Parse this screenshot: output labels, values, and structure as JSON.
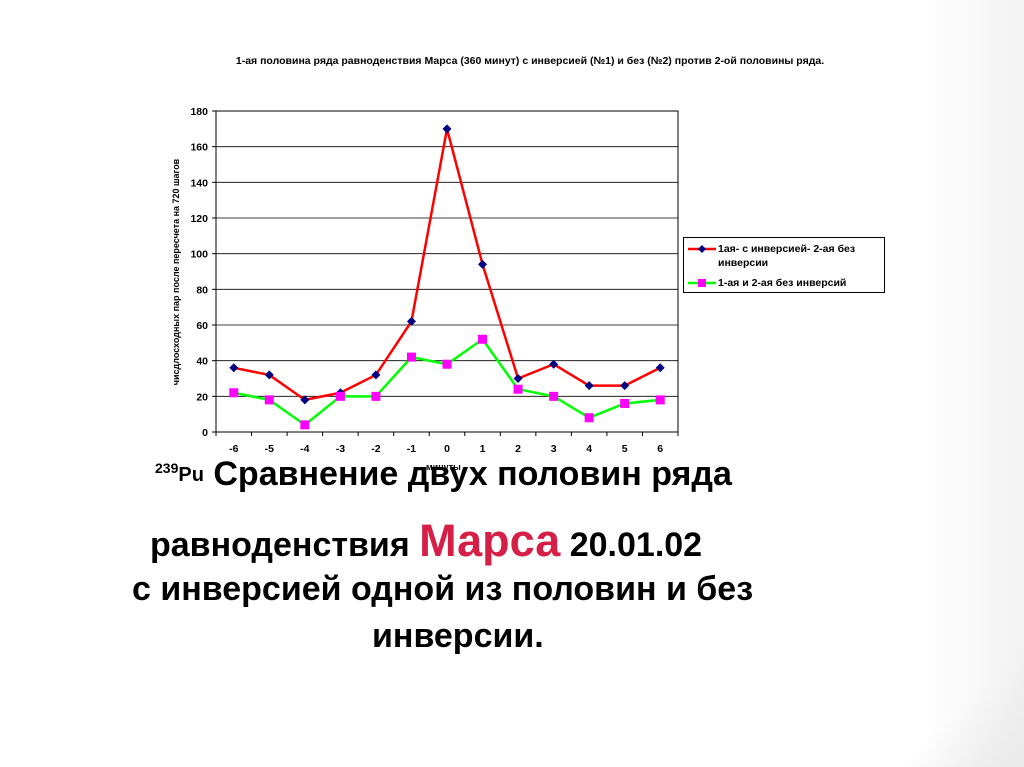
{
  "chart_data": {
    "type": "line",
    "title": "1-ая половина ряда равноденствия Марса (360 минут) с инверсией (№1) и без (№2) против 2-ой половины ряда.",
    "xlabel": "минуты",
    "ylabel": "чисдлосходных пар после пересчета на 720 шагов",
    "ylim": [
      0,
      180
    ],
    "yticks": [
      0,
      20,
      40,
      60,
      80,
      100,
      120,
      140,
      160,
      180
    ],
    "categories": [
      "-6",
      "-5",
      "-4",
      "-3",
      "-2",
      "-1",
      "0",
      "1",
      "2",
      "3",
      "4",
      "5",
      "6"
    ],
    "grid": true,
    "legend_position": "right",
    "series": [
      {
        "name": "1ая- с инверсией- 2-ая без инверсии",
        "color": "#ff0000",
        "marker_color": "#000080",
        "marker": "diamond",
        "values": [
          36,
          32,
          18,
          22,
          32,
          62,
          170,
          94,
          30,
          38,
          26,
          26,
          36
        ]
      },
      {
        "name": "1-ая и 2-ая без инверсий",
        "color": "#00ff00",
        "marker_color": "#ff00ff",
        "marker": "square",
        "values": [
          22,
          18,
          4,
          20,
          20,
          42,
          38,
          52,
          24,
          20,
          8,
          16,
          18
        ]
      }
    ]
  },
  "caption": {
    "isotope_mass": "239",
    "isotope_symbol": "Pu",
    "line1": "Сравнение двух половин ряда",
    "line2_start": "равноденствия",
    "line2_highlight": "Марса",
    "line2_date": "20.01.02",
    "line3": "с инверсией одной из половин и без",
    "line4": "инверсии."
  }
}
